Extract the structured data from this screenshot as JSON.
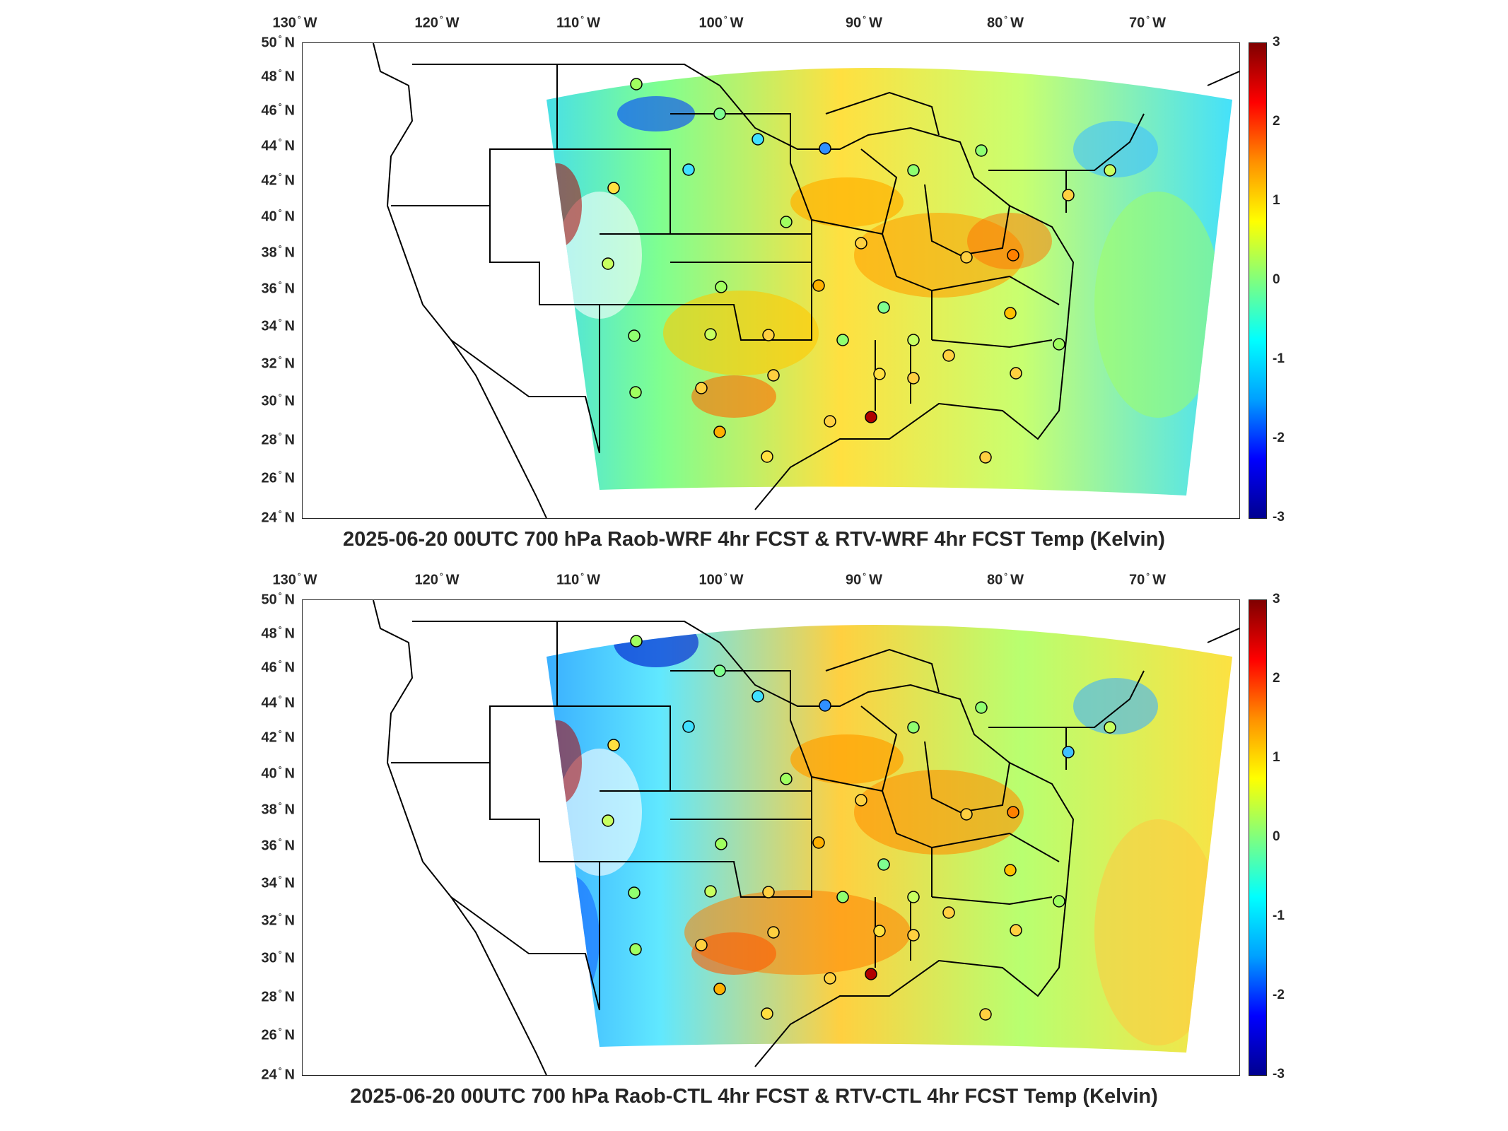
{
  "panels": [
    {
      "title": "2025-06-20 00UTC 700 hPa Raob-WRF 4hr FCST & RTV-WRF 4hr FCST Temp (Kelvin)"
    },
    {
      "title": "2025-06-20 00UTC 700 hPa Raob-CTL 4hr FCST & RTV-CTL 4hr FCST Temp (Kelvin)"
    }
  ],
  "lon_labels": [
    {
      "deg": "130",
      "hem": "W"
    },
    {
      "deg": "120",
      "hem": "W"
    },
    {
      "deg": "110",
      "hem": "W"
    },
    {
      "deg": "100",
      "hem": "W"
    },
    {
      "deg": "90",
      "hem": "W"
    },
    {
      "deg": "80",
      "hem": "W"
    },
    {
      "deg": "70",
      "hem": "W"
    }
  ],
  "lat_labels": [
    {
      "deg": "50",
      "hem": "N"
    },
    {
      "deg": "48",
      "hem": "N"
    },
    {
      "deg": "46",
      "hem": "N"
    },
    {
      "deg": "44",
      "hem": "N"
    },
    {
      "deg": "42",
      "hem": "N"
    },
    {
      "deg": "40",
      "hem": "N"
    },
    {
      "deg": "38",
      "hem": "N"
    },
    {
      "deg": "36",
      "hem": "N"
    },
    {
      "deg": "34",
      "hem": "N"
    },
    {
      "deg": "32",
      "hem": "N"
    },
    {
      "deg": "30",
      "hem": "N"
    },
    {
      "deg": "28",
      "hem": "N"
    },
    {
      "deg": "26",
      "hem": "N"
    },
    {
      "deg": "24",
      "hem": "N"
    }
  ],
  "colorbar": {
    "ticks": [
      "3",
      "2",
      "1",
      "0",
      "-1",
      "-2",
      "-3"
    ],
    "range": [
      -3,
      3
    ],
    "colors": [
      "#00008f",
      "#0000ff",
      "#00a0ff",
      "#00ffff",
      "#7fff7f",
      "#ffff00",
      "#ff9000",
      "#ff0000",
      "#7f0000"
    ]
  },
  "icons": {
    "raob_station": "circle-marker"
  }
}
